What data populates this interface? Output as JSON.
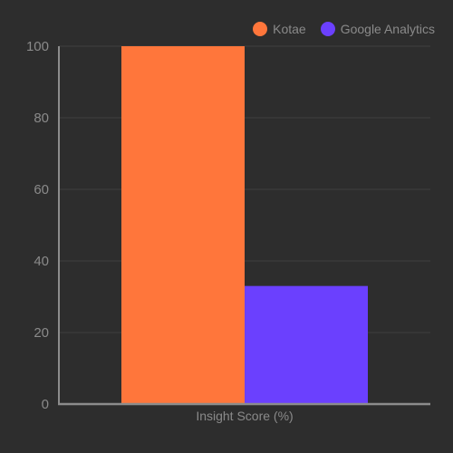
{
  "colors": {
    "background": "#2d2d2d",
    "grid": "#3e3e3e",
    "axis": "#8c8c8c",
    "text": "#8a8a8a"
  },
  "chart_data": {
    "type": "bar",
    "categories": [
      "Insight Score (%)"
    ],
    "series": [
      {
        "name": "Kotae",
        "values": [
          100
        ],
        "color": "#ff763b"
      },
      {
        "name": "Google Analytics",
        "values": [
          33
        ],
        "color": "#6b40fe"
      }
    ],
    "xlabel": "Insight Score (%)",
    "ylabel": "",
    "ylim": [
      0,
      100
    ],
    "yticks": [
      "0",
      "20",
      "40",
      "60",
      "80",
      "100"
    ],
    "grid": true,
    "legend_position": "top-right"
  }
}
